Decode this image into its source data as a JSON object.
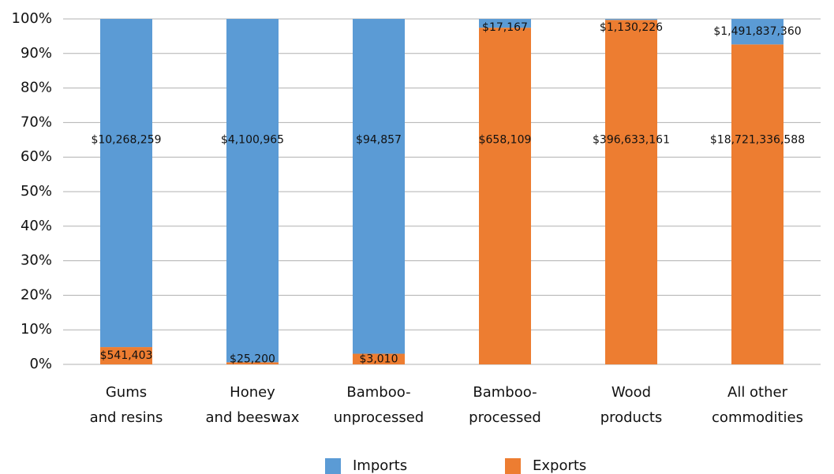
{
  "chart_data": {
    "type": "bar",
    "stacking": "percent",
    "categories": [
      [
        "Gums",
        "and resins"
      ],
      [
        "Honey",
        "and beeswax"
      ],
      [
        "Bamboo-",
        "unprocessed"
      ],
      [
        "Bamboo-",
        "processed"
      ],
      [
        "Wood",
        "products"
      ],
      [
        "All other",
        "commodities"
      ]
    ],
    "series": [
      {
        "name": "Exports",
        "color": "#ed7d31",
        "values": [
          541403,
          25200,
          3010,
          658109,
          396633161,
          18721336588
        ],
        "value_labels": [
          "$541,403",
          "$25,200",
          "$3,010",
          "$658,109",
          "$396,633,161",
          "$18,721,336,588"
        ]
      },
      {
        "name": "Imports",
        "color": "#5b9bd5",
        "values": [
          10268259,
          4100965,
          94857,
          17167,
          1130226,
          1491837360
        ],
        "value_labels": [
          "$10,268,259",
          "$4,100,965",
          "$94,857",
          "$17,167",
          "$1,130,226",
          "$1,491,837,360"
        ]
      }
    ],
    "legend_order": [
      1,
      0
    ],
    "ylim": [
      0,
      100
    ],
    "yticks": [
      {
        "value": 0,
        "label": "0%"
      },
      {
        "value": 10,
        "label": "10%"
      },
      {
        "value": 20,
        "label": "20%"
      },
      {
        "value": 30,
        "label": "30%"
      },
      {
        "value": 40,
        "label": "40%"
      },
      {
        "value": 50,
        "label": "50%"
      },
      {
        "value": 60,
        "label": "60%"
      },
      {
        "value": 70,
        "label": "70%"
      },
      {
        "value": 80,
        "label": "80%"
      },
      {
        "value": 90,
        "label": "90%"
      },
      {
        "value": 100,
        "label": "100%"
      }
    ],
    "grid": true,
    "legend": "bottom"
  }
}
